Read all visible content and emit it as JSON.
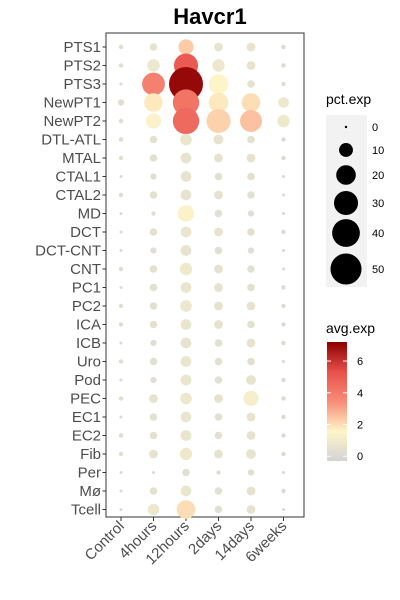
{
  "chart_data": {
    "type": "dotplot",
    "title": "Havcr1",
    "categories_x": [
      "Control",
      "4hours",
      "12hours",
      "2days",
      "14days",
      "6weeks"
    ],
    "categories_y": [
      "PTS1",
      "PTS2",
      "PTS3",
      "NewPT1",
      "NewPT2",
      "DTL-ATL",
      "MTAL",
      "CTAL1",
      "CTAL2",
      "MD",
      "DCT",
      "DCT-CNT",
      "CNT",
      "PC1",
      "PC2",
      "ICA",
      "ICB",
      "Uro",
      "Pod",
      "PEC",
      "EC1",
      "EC2",
      "Fib",
      "Per",
      "Mø",
      "Tcell"
    ],
    "pct_exp": [
      [
        1,
        3,
        12,
        4,
        4,
        1
      ],
      [
        1,
        8,
        30,
        8,
        4,
        1
      ],
      [
        0.5,
        27,
        60,
        20,
        3,
        1
      ],
      [
        2,
        18,
        36,
        20,
        18,
        6
      ],
      [
        1,
        12,
        36,
        30,
        25,
        8
      ],
      [
        1,
        3,
        7,
        5,
        3,
        1
      ],
      [
        1,
        3,
        6,
        4,
        4,
        1
      ],
      [
        0.5,
        2,
        6,
        3,
        3,
        0.5
      ],
      [
        1,
        3,
        6,
        4,
        3,
        0.5
      ],
      [
        0.5,
        1,
        14,
        3,
        2,
        0.5
      ],
      [
        0.5,
        3,
        6,
        4,
        3,
        1
      ],
      [
        0.5,
        2,
        6,
        3,
        2,
        0.5
      ],
      [
        1,
        3,
        8,
        4,
        3,
        0.5
      ],
      [
        0.5,
        3,
        6,
        4,
        3,
        1
      ],
      [
        1,
        3,
        7,
        4,
        4,
        1
      ],
      [
        1,
        3,
        6,
        4,
        3,
        1
      ],
      [
        0.5,
        2,
        6,
        3,
        4,
        1
      ],
      [
        1,
        3,
        6,
        3,
        3,
        0.5
      ],
      [
        0.5,
        2,
        6,
        3,
        5,
        1
      ],
      [
        1,
        4,
        7,
        4,
        12,
        1
      ],
      [
        0.5,
        3,
        6,
        3,
        4,
        1
      ],
      [
        1,
        3,
        6,
        3,
        4,
        1
      ],
      [
        1,
        4,
        8,
        4,
        5,
        1
      ],
      [
        0.5,
        0.5,
        3,
        1,
        2,
        0.5
      ],
      [
        0.5,
        3,
        6,
        3,
        4,
        1
      ],
      [
        0.5,
        7,
        18,
        3,
        4,
        0.5
      ]
    ],
    "avg_exp": [
      [
        0.2,
        0.5,
        2.3,
        0.6,
        0.6,
        0.1
      ],
      [
        0.2,
        0.8,
        5.0,
        0.8,
        0.6,
        0.1
      ],
      [
        0.1,
        3.8,
        7.0,
        1.5,
        0.5,
        0.2
      ],
      [
        0.3,
        1.8,
        4.2,
        1.8,
        2.0,
        0.8
      ],
      [
        0.2,
        1.4,
        4.5,
        2.2,
        2.5,
        0.9
      ],
      [
        0.2,
        0.4,
        0.7,
        0.6,
        0.4,
        0.1
      ],
      [
        0.2,
        0.4,
        0.6,
        0.5,
        0.5,
        0.1
      ],
      [
        0.1,
        0.3,
        0.6,
        0.4,
        0.4,
        0.1
      ],
      [
        0.2,
        0.4,
        0.6,
        0.5,
        0.4,
        0.1
      ],
      [
        0.1,
        0.2,
        1.4,
        0.4,
        0.3,
        0.1
      ],
      [
        0.1,
        0.4,
        0.7,
        0.5,
        0.4,
        0.1
      ],
      [
        0.1,
        0.3,
        0.6,
        0.4,
        0.3,
        0.1
      ],
      [
        0.2,
        0.4,
        0.9,
        0.5,
        0.4,
        0.1
      ],
      [
        0.1,
        0.4,
        0.7,
        0.5,
        0.4,
        0.1
      ],
      [
        0.2,
        0.4,
        0.8,
        0.5,
        0.5,
        0.1
      ],
      [
        0.2,
        0.4,
        0.7,
        0.5,
        0.4,
        0.1
      ],
      [
        0.1,
        0.3,
        0.6,
        0.4,
        0.5,
        0.1
      ],
      [
        0.2,
        0.4,
        0.7,
        0.4,
        0.4,
        0.1
      ],
      [
        0.1,
        0.3,
        0.7,
        0.4,
        0.6,
        0.1
      ],
      [
        0.2,
        0.5,
        0.8,
        0.5,
        1.2,
        0.1
      ],
      [
        0.1,
        0.4,
        0.7,
        0.4,
        0.5,
        0.1
      ],
      [
        0.2,
        0.4,
        0.7,
        0.4,
        0.5,
        0.1
      ],
      [
        0.2,
        0.5,
        0.9,
        0.5,
        0.6,
        0.1
      ],
      [
        0.1,
        0.1,
        0.4,
        0.2,
        0.3,
        0.1
      ],
      [
        0.1,
        0.4,
        0.7,
        0.4,
        0.5,
        0.1
      ],
      [
        0.1,
        0.8,
        2.0,
        0.4,
        0.5,
        0.1
      ]
    ],
    "legend_size": {
      "title": "pct.exp",
      "breaks": [
        0,
        10,
        20,
        30,
        40,
        50
      ],
      "labels": [
        "0",
        "10",
        "20",
        "30",
        "40",
        "50"
      ]
    },
    "legend_color": {
      "title": "avg.exp",
      "min": -0.3,
      "max": 7.2,
      "ticks": [
        0,
        2,
        4,
        6
      ],
      "tick_labels": [
        "0",
        "2",
        "4",
        "6"
      ],
      "colors": [
        "#d3d3d3",
        "#fff5c8",
        "#f78c77",
        "#e8504a",
        "#8b0000"
      ]
    },
    "grid": false,
    "legend_position": "right"
  }
}
